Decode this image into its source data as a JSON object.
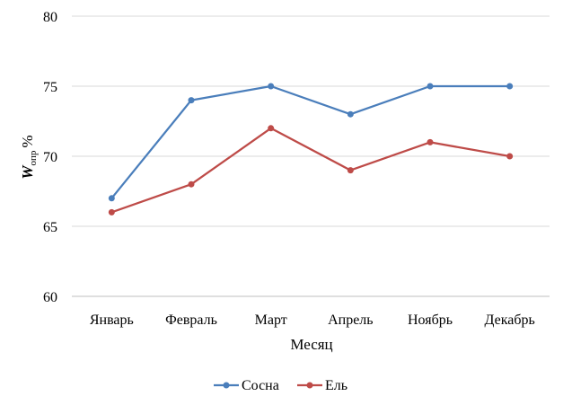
{
  "chart_data": {
    "type": "line",
    "categories": [
      "Январь",
      "Февраль",
      "Март",
      "Апрель",
      "Ноябрь",
      "Декабрь"
    ],
    "series": [
      {
        "name": "Сосна",
        "values": [
          67,
          74,
          75,
          73,
          75,
          75
        ],
        "color": "#4a7ebb"
      },
      {
        "name": "Ель",
        "values": [
          66,
          68,
          72,
          69,
          71,
          70
        ],
        "color": "#be4b48"
      }
    ],
    "xlabel": "Месяц",
    "ylabel": {
      "main": "W",
      "sub": "опр",
      "unit": "%"
    },
    "ylim": [
      60,
      80
    ],
    "yticks": [
      "60",
      "65",
      "70",
      "75",
      "80"
    ],
    "grid": true,
    "legend_position": "bottom"
  }
}
